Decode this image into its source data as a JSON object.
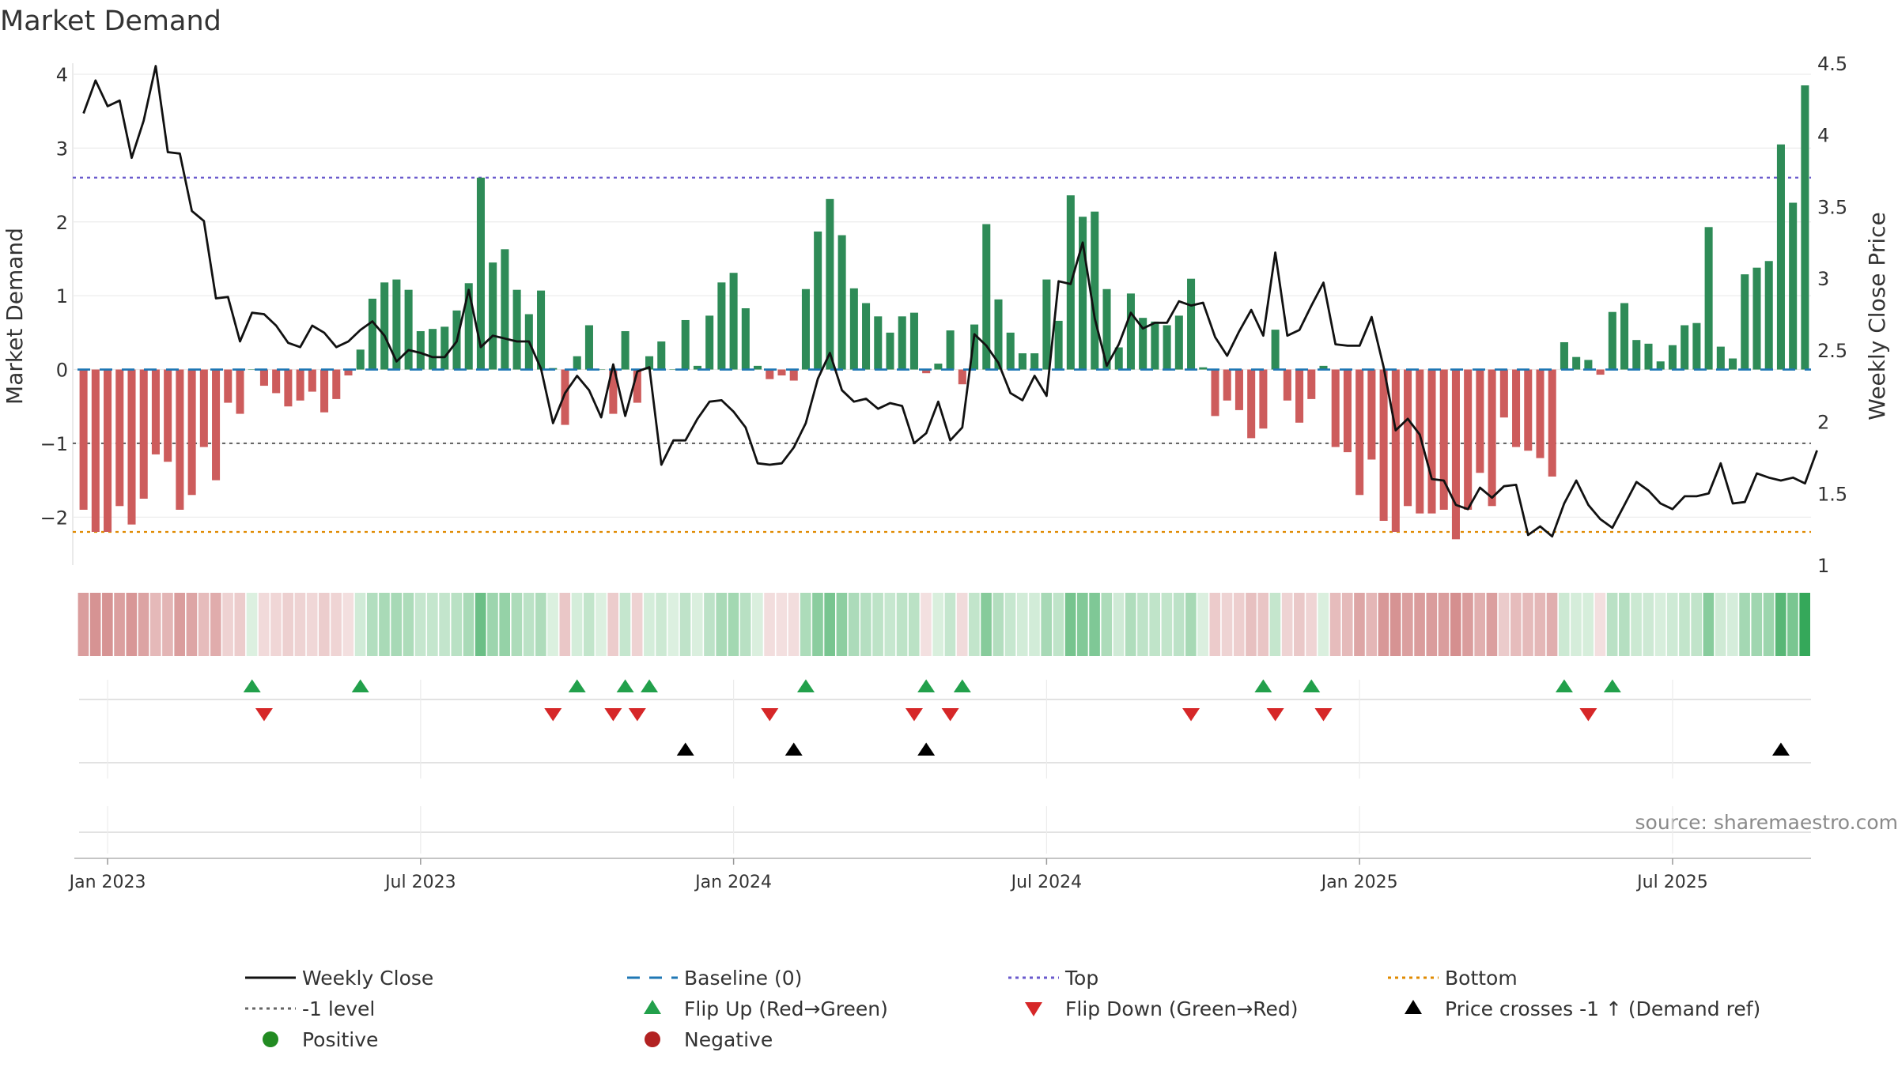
{
  "chart_data": {
    "type": "bar",
    "title": "Market Demand",
    "ylabel_left": "Market Demand",
    "ylabel_right": "Weekly Close Price",
    "source": "source: sharemaestro.com",
    "start_date": "2022-12-19",
    "ylim_left": [
      -2.65,
      4.15
    ],
    "ylim_right": [
      1.0,
      4.5
    ],
    "yticks_left": [
      {
        "v": -2,
        "label": "−2"
      },
      {
        "v": -1,
        "label": "−1"
      },
      {
        "v": 0,
        "label": "0"
      },
      {
        "v": 1,
        "label": "1"
      },
      {
        "v": 2,
        "label": "2"
      },
      {
        "v": 3,
        "label": "3"
      },
      {
        "v": 4,
        "label": "4"
      }
    ],
    "yticks_right": [
      {
        "v": 1,
        "label": "1"
      },
      {
        "v": 1.5,
        "label": "1.5"
      },
      {
        "v": 2,
        "label": "2"
      },
      {
        "v": 2.5,
        "label": "2.5"
      },
      {
        "v": 3,
        "label": "3"
      },
      {
        "v": 3.5,
        "label": "3.5"
      },
      {
        "v": 4,
        "label": "4"
      },
      {
        "v": 4.5,
        "label": "4.5"
      }
    ],
    "xticks": [
      {
        "week": 2,
        "label": "Jan 2023"
      },
      {
        "week": 28,
        "label": "Jul 2023"
      },
      {
        "week": 54,
        "label": "Jan 2024"
      },
      {
        "week": 80,
        "label": "Jul 2024"
      },
      {
        "week": 106,
        "label": "Jan 2025"
      },
      {
        "week": 132,
        "label": "Jul 2025"
      }
    ],
    "reference_lines": {
      "top": 2.6,
      "bottom": -2.2,
      "minus_one": -1,
      "baseline": 0
    },
    "colors": {
      "positive": "#2e8b57",
      "negative": "#cd5c5c",
      "price": "#111111",
      "baseline": "#1f77b4",
      "top": "#6a5acd",
      "bottom": "#e08a00",
      "minus_one": "#666666",
      "flip_up": "#22a04b",
      "flip_down": "#d62728",
      "cross": "#000000",
      "legend_positive": "#228b22",
      "legend_negative": "#b22222"
    },
    "series": [
      {
        "name": "Market Demand",
        "values": [
          -1.9,
          -2.2,
          -2.2,
          -1.85,
          -2.1,
          -1.75,
          -1.15,
          -1.25,
          -1.9,
          -1.7,
          -1.05,
          -1.5,
          -0.45,
          -0.6,
          0.0,
          -0.22,
          -0.32,
          -0.5,
          -0.42,
          -0.3,
          -0.58,
          -0.4,
          -0.08,
          0.27,
          0.96,
          1.18,
          1.22,
          1.08,
          0.52,
          0.55,
          0.58,
          0.8,
          1.17,
          2.6,
          1.45,
          1.63,
          1.08,
          0.75,
          1.07,
          0.02,
          -0.75,
          0.18,
          0.6,
          0.0,
          -0.6,
          0.52,
          -0.45,
          0.18,
          0.38,
          0.0,
          0.67,
          0.05,
          0.73,
          1.18,
          1.31,
          0.83,
          0.05,
          -0.13,
          -0.08,
          -0.15,
          1.09,
          1.87,
          2.31,
          1.82,
          1.1,
          0.9,
          0.72,
          0.5,
          0.72,
          0.77,
          -0.05,
          0.08,
          0.53,
          -0.2,
          0.61,
          1.97,
          0.95,
          0.5,
          0.22,
          0.22,
          1.22,
          0.66,
          2.36,
          2.07,
          2.14,
          1.09,
          0.3,
          1.03,
          0.7,
          0.65,
          0.6,
          0.73,
          1.23,
          0.03,
          -0.63,
          -0.42,
          -0.55,
          -0.93,
          -0.8,
          0.54,
          -0.42,
          -0.72,
          -0.4,
          0.05,
          -1.05,
          -1.12,
          -1.7,
          -1.22,
          -2.05,
          -2.2,
          -1.85,
          -1.95,
          -1.95,
          -1.9,
          -2.3,
          -1.9,
          -1.4,
          -1.85,
          -0.65,
          -1.05,
          -1.1,
          -1.2,
          -1.45,
          0.37,
          0.17,
          0.13,
          -0.07,
          0.78,
          0.9,
          0.4,
          0.35,
          0.11,
          0.33,
          0.6,
          0.63,
          1.93,
          0.31,
          0.15,
          1.29,
          1.38,
          1.47,
          3.05,
          2.26,
          3.85
        ]
      },
      {
        "name": "Weekly Close",
        "values": [
          4.15,
          4.38,
          4.2,
          4.24,
          3.84,
          4.1,
          4.48,
          3.88,
          3.87,
          3.47,
          3.4,
          2.86,
          2.87,
          2.56,
          2.76,
          2.75,
          2.67,
          2.55,
          2.52,
          2.67,
          2.62,
          2.52,
          2.56,
          2.64,
          2.7,
          2.6,
          2.42,
          2.5,
          2.48,
          2.45,
          2.45,
          2.56,
          2.92,
          2.52,
          2.6,
          2.58,
          2.56,
          2.56,
          2.37,
          1.99,
          2.2,
          2.32,
          2.22,
          2.03,
          2.4,
          2.04,
          2.35,
          2.38,
          1.7,
          1.87,
          1.87,
          2.02,
          2.14,
          2.15,
          2.07,
          1.96,
          1.71,
          1.7,
          1.71,
          1.82,
          1.99,
          2.3,
          2.48,
          2.22,
          2.14,
          2.16,
          2.09,
          2.13,
          2.11,
          1.85,
          1.92,
          2.14,
          1.87,
          1.96,
          2.61,
          2.53,
          2.41,
          2.2,
          2.15,
          2.32,
          2.18,
          2.98,
          2.96,
          3.25,
          2.72,
          2.39,
          2.54,
          2.76,
          2.65,
          2.69,
          2.69,
          2.84,
          2.81,
          2.83,
          2.59,
          2.46,
          2.63,
          2.78,
          2.6,
          3.18,
          2.6,
          2.64,
          2.81,
          2.97,
          2.54,
          2.53,
          2.53,
          2.73,
          2.38,
          1.94,
          2.02,
          1.91,
          1.6,
          1.59,
          1.42,
          1.39,
          1.54,
          1.47,
          1.55,
          1.56,
          1.21,
          1.27,
          1.2,
          1.43,
          1.59,
          1.42,
          1.32,
          1.26,
          1.42,
          1.58,
          1.52,
          1.43,
          1.39,
          1.48,
          1.48,
          1.5,
          1.71,
          1.43,
          1.44,
          1.64,
          1.61,
          1.59,
          1.61,
          1.57,
          1.8
        ]
      }
    ],
    "strip_color_scale": {
      "min": -2.3,
      "max": 3.85
    },
    "flip_up_weeks": [
      14,
      23,
      41,
      45,
      47,
      60,
      70,
      73,
      98,
      102,
      123,
      127
    ],
    "flip_down_weeks": [
      15,
      39,
      44,
      46,
      57,
      69,
      72,
      92,
      99,
      103,
      125
    ],
    "cross_weeks": [
      50,
      59,
      70,
      141
    ],
    "legend": [
      {
        "label": "Weekly Close",
        "marker": "line",
        "color": "#111111"
      },
      {
        "label": "Baseline (0)",
        "marker": "dash",
        "color": "#1f77b4"
      },
      {
        "label": "Top",
        "marker": "dot",
        "color": "#6a5acd"
      },
      {
        "label": "Bottom",
        "marker": "dot",
        "color": "#e08a00"
      },
      {
        "label": "-1 level",
        "marker": "dot",
        "color": "#666666"
      },
      {
        "label": "Flip Up (Red→Green)",
        "marker": "tri-up",
        "color": "#22a04b"
      },
      {
        "label": "Flip Down (Green→Red)",
        "marker": "tri-down",
        "color": "#d62728"
      },
      {
        "label": "Price crosses -1 ↑ (Demand ref)",
        "marker": "tri-up",
        "color": "#000000"
      },
      {
        "label": "Positive",
        "marker": "circle",
        "color": "#228b22"
      },
      {
        "label": "Negative",
        "marker": "circle",
        "color": "#b22222"
      }
    ]
  }
}
